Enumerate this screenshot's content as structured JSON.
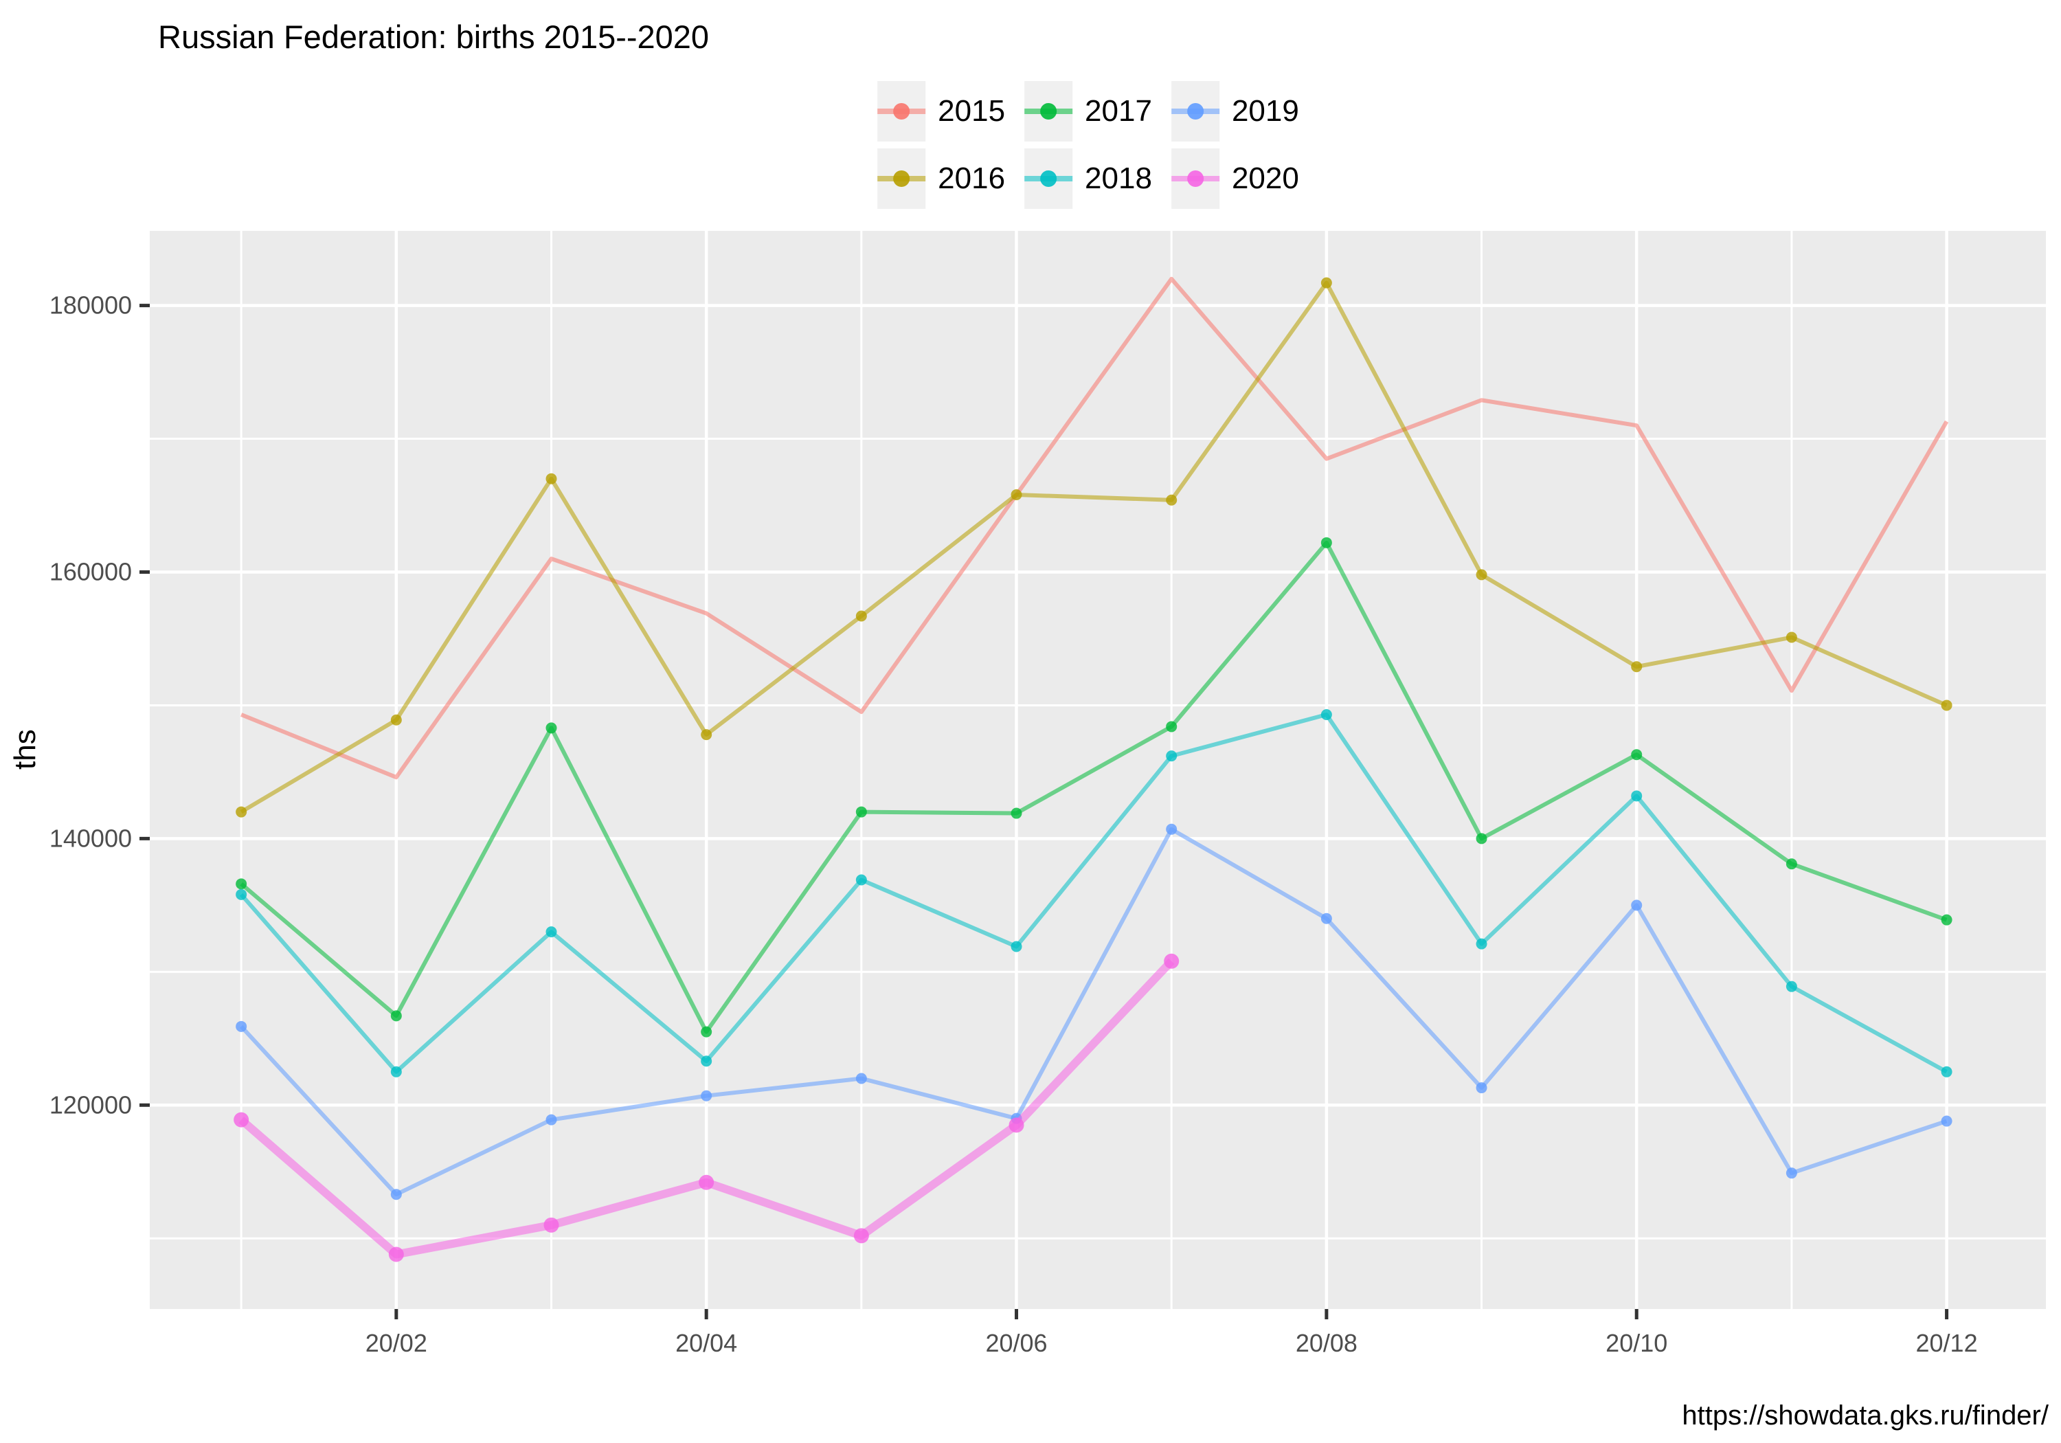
{
  "chart_data": {
    "type": "line",
    "title": "Russian Federation: births 2015--2020",
    "ylabel": "ths",
    "footer_url": "https://showdata.gks.ru/finder/",
    "x_unit": "month",
    "xlim": [
      0.41,
      12.64
    ],
    "ylim": [
      104700,
      185600
    ],
    "grid": "on",
    "panel_bg": "#EBEBEB",
    "grid_color": "#FFFFFF",
    "tick_mark_color": "#333333",
    "axis_text_color": "#4D4D4D",
    "xticks": {
      "positions": [
        2,
        4,
        6,
        8,
        10,
        12
      ],
      "labels": [
        "20/02",
        "20/04",
        "20/06",
        "20/08",
        "20/10",
        "20/12"
      ]
    },
    "x_minor": [
      1,
      3,
      5,
      7,
      9,
      11
    ],
    "yticks": {
      "positions": [
        120000,
        140000,
        160000,
        180000
      ],
      "labels": [
        "120000",
        "140000",
        "160000",
        "180000"
      ]
    },
    "y_minor": [
      110000,
      130000,
      150000,
      170000
    ],
    "series": [
      {
        "name": "2015",
        "color": "#F8766D",
        "show_points": false,
        "thick": false,
        "values": [
          149300,
          144600,
          161000,
          156900,
          149500,
          165800,
          182000,
          168500,
          172900,
          171000,
          151100,
          171300
        ]
      },
      {
        "name": "2016",
        "color": "#B79F00",
        "show_points": true,
        "thick": false,
        "values": [
          142000,
          148900,
          167000,
          147800,
          156700,
          165800,
          165400,
          181700,
          159800,
          152900,
          155100,
          150000
        ]
      },
      {
        "name": "2017",
        "color": "#00BA38",
        "show_points": true,
        "thick": false,
        "values": [
          136600,
          126700,
          148300,
          125500,
          142000,
          141900,
          148400,
          162200,
          140000,
          146300,
          138100,
          133900
        ]
      },
      {
        "name": "2018",
        "color": "#00BFC4",
        "show_points": true,
        "thick": false,
        "values": [
          135800,
          122500,
          133000,
          123300,
          136900,
          131900,
          146200,
          149300,
          132100,
          143200,
          128900,
          122500
        ]
      },
      {
        "name": "2019",
        "color": "#619CFF",
        "show_points": true,
        "thick": false,
        "values": [
          125900,
          113300,
          118900,
          120700,
          122000,
          119000,
          140700,
          134000,
          121300,
          135000,
          114900,
          118800
        ]
      },
      {
        "name": "2020",
        "color": "#F564E3",
        "show_points": true,
        "thick": true,
        "values": [
          118900,
          108800,
          111000,
          114200,
          110200,
          118500,
          130800
        ]
      }
    ],
    "legend": {
      "position": "top",
      "rows": [
        [
          "2015",
          "2017",
          "2019"
        ],
        [
          "2016",
          "2018",
          "2020"
        ]
      ]
    }
  }
}
